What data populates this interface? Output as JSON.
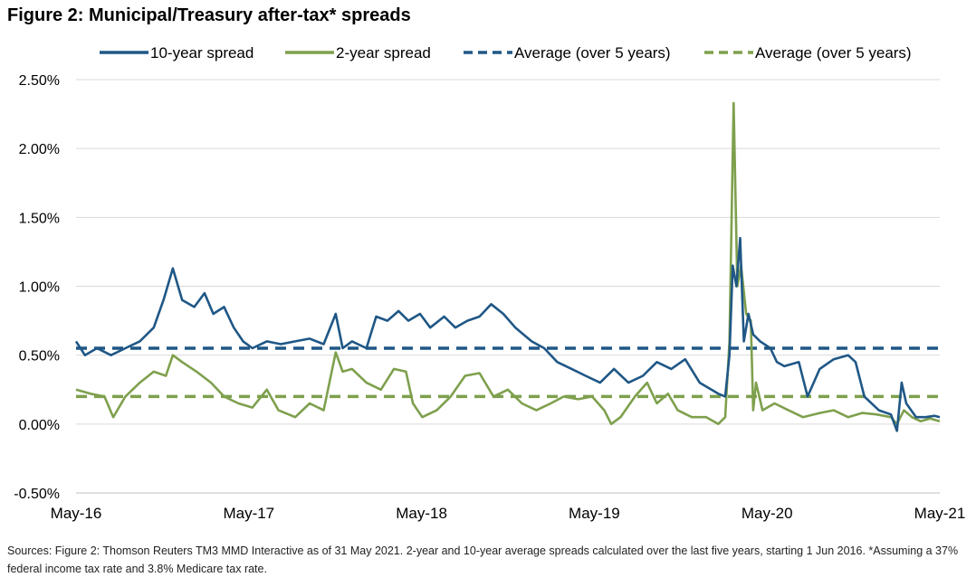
{
  "title": "Figure 2: Municipal/Treasury after-tax* spreads",
  "footnote": "Sources: Figure 2: Thomson Reuters TM3 MMD Interactive as of 31 May 2021. 2-year and 10-year average spreads calculated over the last five years, starting 1 Jun 2016. *Assuming a 37% federal income tax rate and 3.8% Medicare tax rate.",
  "colors": {
    "ten_year": "#1f5786",
    "two_year": "#7ea04d",
    "grid": "#d9d9d9",
    "axis": "#bfbfbf"
  },
  "chart_data": {
    "type": "line",
    "title": "Figure 2: Municipal/Treasury after-tax* spreads",
    "xlabel": "",
    "ylabel": "",
    "ylim": [
      -0.5,
      2.5
    ],
    "xlim": [
      "2016-05-01",
      "2021-05-31"
    ],
    "y_ticks": [
      2.5,
      2.0,
      1.5,
      1.0,
      0.5,
      0.0,
      -0.5
    ],
    "y_tick_labels": [
      "2.50%",
      "2.00%",
      "1.50%",
      "1.00%",
      "0.50%",
      "0.00%",
      "-0.50%"
    ],
    "x_tick_labels": [
      "May-16",
      "May-17",
      "May-18",
      "May-19",
      "May-20",
      "May-21"
    ],
    "grid": true,
    "legend_position": "top",
    "series": [
      {
        "name": "10-year spread",
        "style": "solid",
        "color": "#1f5786",
        "points": [
          [
            "2016-05-01",
            0.6
          ],
          [
            "2016-05-20",
            0.5
          ],
          [
            "2016-06-15",
            0.55
          ],
          [
            "2016-07-15",
            0.5
          ],
          [
            "2016-08-15",
            0.55
          ],
          [
            "2016-09-15",
            0.6
          ],
          [
            "2016-10-15",
            0.7
          ],
          [
            "2016-11-05",
            0.9
          ],
          [
            "2016-11-25",
            1.13
          ],
          [
            "2016-12-15",
            0.9
          ],
          [
            "2017-01-10",
            0.85
          ],
          [
            "2017-02-01",
            0.95
          ],
          [
            "2017-02-20",
            0.8
          ],
          [
            "2017-03-15",
            0.85
          ],
          [
            "2017-04-05",
            0.7
          ],
          [
            "2017-04-25",
            0.6
          ],
          [
            "2017-05-15",
            0.55
          ],
          [
            "2017-06-15",
            0.6
          ],
          [
            "2017-07-15",
            0.58
          ],
          [
            "2017-08-15",
            0.6
          ],
          [
            "2017-09-15",
            0.62
          ],
          [
            "2017-10-15",
            0.58
          ],
          [
            "2017-11-10",
            0.8
          ],
          [
            "2017-11-25",
            0.55
          ],
          [
            "2017-12-15",
            0.6
          ],
          [
            "2018-01-15",
            0.55
          ],
          [
            "2018-02-05",
            0.78
          ],
          [
            "2018-03-01",
            0.75
          ],
          [
            "2018-03-25",
            0.82
          ],
          [
            "2018-04-15",
            0.75
          ],
          [
            "2018-05-10",
            0.8
          ],
          [
            "2018-06-01",
            0.7
          ],
          [
            "2018-07-01",
            0.78
          ],
          [
            "2018-07-25",
            0.7
          ],
          [
            "2018-08-20",
            0.75
          ],
          [
            "2018-09-15",
            0.78
          ],
          [
            "2018-10-10",
            0.87
          ],
          [
            "2018-11-05",
            0.8
          ],
          [
            "2018-12-01",
            0.7
          ],
          [
            "2019-01-05",
            0.6
          ],
          [
            "2019-02-01",
            0.55
          ],
          [
            "2019-03-01",
            0.45
          ],
          [
            "2019-04-01",
            0.4
          ],
          [
            "2019-05-01",
            0.35
          ],
          [
            "2019-06-01",
            0.3
          ],
          [
            "2019-07-01",
            0.4
          ],
          [
            "2019-08-01",
            0.3
          ],
          [
            "2019-09-01",
            0.35
          ],
          [
            "2019-10-01",
            0.45
          ],
          [
            "2019-11-01",
            0.4
          ],
          [
            "2019-12-01",
            0.47
          ],
          [
            "2020-01-01",
            0.3
          ],
          [
            "2020-02-10",
            0.22
          ],
          [
            "2020-02-25",
            0.2
          ],
          [
            "2020-03-05",
            0.5
          ],
          [
            "2020-03-12",
            1.15
          ],
          [
            "2020-03-20",
            1.0
          ],
          [
            "2020-03-28",
            1.35
          ],
          [
            "2020-04-05",
            0.6
          ],
          [
            "2020-04-15",
            0.8
          ],
          [
            "2020-04-25",
            0.65
          ],
          [
            "2020-05-10",
            0.6
          ],
          [
            "2020-06-01",
            0.55
          ],
          [
            "2020-06-15",
            0.45
          ],
          [
            "2020-07-01",
            0.42
          ],
          [
            "2020-08-01",
            0.45
          ],
          [
            "2020-08-20",
            0.2
          ],
          [
            "2020-09-15",
            0.4
          ],
          [
            "2020-10-15",
            0.47
          ],
          [
            "2020-11-15",
            0.5
          ],
          [
            "2020-12-01",
            0.45
          ],
          [
            "2020-12-20",
            0.2
          ],
          [
            "2021-01-20",
            0.1
          ],
          [
            "2021-02-15",
            0.07
          ],
          [
            "2021-02-28",
            -0.05
          ],
          [
            "2021-03-10",
            0.3
          ],
          [
            "2021-03-20",
            0.15
          ],
          [
            "2021-04-10",
            0.05
          ],
          [
            "2021-05-01",
            0.05
          ],
          [
            "2021-05-20",
            0.06
          ],
          [
            "2021-05-31",
            0.05
          ]
        ]
      },
      {
        "name": "2-year spread",
        "style": "solid",
        "color": "#7ea04d",
        "points": [
          [
            "2016-05-01",
            0.25
          ],
          [
            "2016-06-01",
            0.22
          ],
          [
            "2016-07-01",
            0.2
          ],
          [
            "2016-07-20",
            0.05
          ],
          [
            "2016-08-15",
            0.2
          ],
          [
            "2016-09-15",
            0.3
          ],
          [
            "2016-10-15",
            0.38
          ],
          [
            "2016-11-10",
            0.35
          ],
          [
            "2016-11-25",
            0.5
          ],
          [
            "2016-12-15",
            0.45
          ],
          [
            "2017-01-15",
            0.38
          ],
          [
            "2017-02-15",
            0.3
          ],
          [
            "2017-03-15",
            0.2
          ],
          [
            "2017-04-15",
            0.15
          ],
          [
            "2017-05-15",
            0.12
          ],
          [
            "2017-06-15",
            0.25
          ],
          [
            "2017-07-10",
            0.1
          ],
          [
            "2017-08-15",
            0.05
          ],
          [
            "2017-09-15",
            0.15
          ],
          [
            "2017-10-15",
            0.1
          ],
          [
            "2017-11-10",
            0.52
          ],
          [
            "2017-11-25",
            0.38
          ],
          [
            "2017-12-15",
            0.4
          ],
          [
            "2018-01-15",
            0.3
          ],
          [
            "2018-02-15",
            0.25
          ],
          [
            "2018-03-15",
            0.4
          ],
          [
            "2018-04-10",
            0.38
          ],
          [
            "2018-04-25",
            0.15
          ],
          [
            "2018-05-15",
            0.05
          ],
          [
            "2018-06-15",
            0.1
          ],
          [
            "2018-07-15",
            0.2
          ],
          [
            "2018-08-15",
            0.35
          ],
          [
            "2018-09-15",
            0.37
          ],
          [
            "2018-10-15",
            0.2
          ],
          [
            "2018-11-15",
            0.25
          ],
          [
            "2018-12-15",
            0.15
          ],
          [
            "2019-01-15",
            0.1
          ],
          [
            "2019-02-15",
            0.15
          ],
          [
            "2019-03-15",
            0.2
          ],
          [
            "2019-04-15",
            0.18
          ],
          [
            "2019-05-15",
            0.2
          ],
          [
            "2019-06-10",
            0.1
          ],
          [
            "2019-06-25",
            0.0
          ],
          [
            "2019-07-15",
            0.05
          ],
          [
            "2019-08-15",
            0.2
          ],
          [
            "2019-09-10",
            0.3
          ],
          [
            "2019-10-01",
            0.15
          ],
          [
            "2019-10-25",
            0.22
          ],
          [
            "2019-11-15",
            0.1
          ],
          [
            "2019-12-15",
            0.05
          ],
          [
            "2020-01-15",
            0.05
          ],
          [
            "2020-02-10",
            0.0
          ],
          [
            "2020-02-25",
            0.05
          ],
          [
            "2020-03-05",
            0.6
          ],
          [
            "2020-03-14",
            2.33
          ],
          [
            "2020-03-22",
            1.0
          ],
          [
            "2020-03-30",
            1.15
          ],
          [
            "2020-04-10",
            0.8
          ],
          [
            "2020-04-20",
            0.75
          ],
          [
            "2020-04-25",
            0.1
          ],
          [
            "2020-05-01",
            0.3
          ],
          [
            "2020-05-15",
            0.1
          ],
          [
            "2020-06-10",
            0.15
          ],
          [
            "2020-07-10",
            0.1
          ],
          [
            "2020-08-10",
            0.05
          ],
          [
            "2020-09-15",
            0.08
          ],
          [
            "2020-10-15",
            0.1
          ],
          [
            "2020-11-15",
            0.05
          ],
          [
            "2020-12-15",
            0.08
          ],
          [
            "2021-01-15",
            0.07
          ],
          [
            "2021-02-15",
            0.05
          ],
          [
            "2021-02-28",
            0.0
          ],
          [
            "2021-03-15",
            0.1
          ],
          [
            "2021-04-01",
            0.05
          ],
          [
            "2021-04-20",
            0.02
          ],
          [
            "2021-05-10",
            0.04
          ],
          [
            "2021-05-31",
            0.02
          ]
        ]
      },
      {
        "name": "Average (over 5 years)",
        "style": "dashed",
        "color": "#1f5786",
        "value": 0.55
      },
      {
        "name": "Average (over 5 years)",
        "style": "dashed",
        "color": "#7ea04d",
        "value": 0.2
      }
    ]
  }
}
